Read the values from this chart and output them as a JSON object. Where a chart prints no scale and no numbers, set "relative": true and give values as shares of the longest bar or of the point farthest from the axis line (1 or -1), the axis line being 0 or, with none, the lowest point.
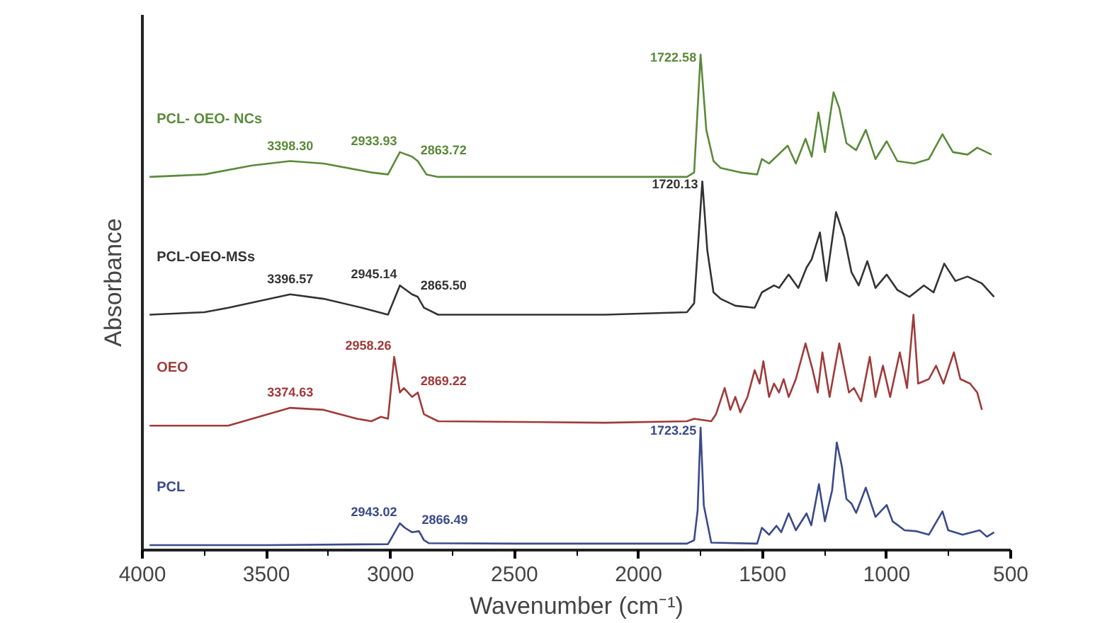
{
  "chart_data": {
    "type": "line",
    "relative": true,
    "xlabel": "Wavenumber (cm⁻¹)",
    "ylabel": "Absorbance",
    "xlim": [
      4000,
      500
    ],
    "xticks": [
      4000,
      3500,
      3000,
      2500,
      2000,
      1500,
      1000,
      500
    ],
    "tick_labels": "x",
    "grid": false,
    "marker": "none",
    "line_style": "solid",
    "series": [
      {
        "name": "PCL",
        "color": "#3a4a8a",
        "x": [
          3971,
          3500,
          3010,
          2962,
          2942,
          2913,
          2885,
          2865,
          2846,
          2500,
          2176,
          1805,
          1776,
          1762,
          1750,
          1737,
          1707,
          1522,
          1503,
          1474,
          1444,
          1425,
          1395,
          1366,
          1323,
          1304,
          1273,
          1249,
          1220,
          1201,
          1181,
          1162,
          1142,
          1123,
          1084,
          1045,
          1000,
          976,
          928,
          879,
          830,
          775,
          752,
          694,
          625,
          596,
          567
        ],
        "values": [
          0.01,
          0.01,
          0.012,
          0.054,
          0.045,
          0.036,
          0.038,
          0.02,
          0.014,
          0.013,
          0.013,
          0.013,
          0.02,
          0.08,
          0.247,
          0.09,
          0.015,
          0.013,
          0.045,
          0.031,
          0.049,
          0.036,
          0.074,
          0.04,
          0.074,
          0.05,
          0.133,
          0.058,
          0.12,
          0.217,
          0.17,
          0.103,
          0.094,
          0.075,
          0.126,
          0.067,
          0.091,
          0.058,
          0.04,
          0.038,
          0.031,
          0.078,
          0.04,
          0.031,
          0.04,
          0.027,
          0.036
        ]
      },
      {
        "name": "OEO",
        "color": "#a03a3a",
        "x": [
          3971,
          3654,
          3404,
          3269,
          3135,
          3077,
          3038,
          3010,
          2985,
          2962,
          2946,
          2913,
          2890,
          2865,
          2808,
          2135,
          1805,
          1776,
          1707,
          1688,
          1653,
          1630,
          1610,
          1590,
          1561,
          1532,
          1512,
          1497,
          1474,
          1454,
          1434,
          1415,
          1395,
          1366,
          1327,
          1298,
          1278,
          1259,
          1230,
          1191,
          1152,
          1132,
          1103,
          1068,
          1045,
          1015,
          986,
          947,
          918,
          892,
          873,
          830,
          801,
          771,
          729,
          703,
          664,
          635,
          616
        ],
        "values": [
          0.251,
          0.251,
          0.287,
          0.283,
          0.265,
          0.26,
          0.269,
          0.265,
          0.39,
          0.318,
          0.327,
          0.309,
          0.318,
          0.274,
          0.26,
          0.257,
          0.26,
          0.265,
          0.26,
          0.274,
          0.327,
          0.283,
          0.309,
          0.278,
          0.309,
          0.363,
          0.336,
          0.381,
          0.309,
          0.336,
          0.318,
          0.345,
          0.309,
          0.345,
          0.417,
          0.363,
          0.318,
          0.399,
          0.309,
          0.417,
          0.318,
          0.327,
          0.3,
          0.39,
          0.309,
          0.372,
          0.309,
          0.399,
          0.327,
          0.475,
          0.336,
          0.345,
          0.372,
          0.336,
          0.399,
          0.345,
          0.336,
          0.318,
          0.283
        ]
      },
      {
        "name": "PCL-OEO-MSs",
        "color": "#333333",
        "x": [
          3971,
          3750,
          3654,
          3404,
          3269,
          3115,
          3010,
          2962,
          2913,
          2890,
          2865,
          2808,
          2135,
          1805,
          1776,
          1743,
          1723,
          1698,
          1669,
          1610,
          1532,
          1503,
          1454,
          1434,
          1395,
          1356,
          1323,
          1302,
          1269,
          1243,
          1204,
          1171,
          1142,
          1113,
          1078,
          1045,
          1000,
          957,
          908,
          850,
          811,
          768,
          723,
          674,
          616,
          567
        ],
        "values": [
          0.475,
          0.48,
          0.489,
          0.516,
          0.507,
          0.489,
          0.475,
          0.534,
          0.516,
          0.511,
          0.489,
          0.475,
          0.475,
          0.48,
          0.498,
          0.744,
          0.605,
          0.52,
          0.507,
          0.493,
          0.489,
          0.52,
          0.534,
          0.529,
          0.556,
          0.529,
          0.57,
          0.587,
          0.641,
          0.543,
          0.682,
          0.632,
          0.561,
          0.534,
          0.583,
          0.529,
          0.556,
          0.525,
          0.511,
          0.534,
          0.52,
          0.578,
          0.543,
          0.552,
          0.538,
          0.511
        ]
      },
      {
        "name": "PCL- OEO- NCs",
        "color": "#5a8a3a",
        "x": [
          3971,
          3750,
          3558,
          3404,
          3269,
          3077,
          3010,
          2962,
          2913,
          2890,
          2855,
          2808,
          2135,
          1805,
          1776,
          1750,
          1727,
          1698,
          1669,
          1590,
          1522,
          1503,
          1474,
          1399,
          1366,
          1327,
          1302,
          1275,
          1249,
          1214,
          1191,
          1162,
          1123,
          1084,
          1045,
          1000,
          957,
          889,
          830,
          775,
          733,
          674,
          635,
          577
        ],
        "values": [
          0.753,
          0.758,
          0.776,
          0.785,
          0.78,
          0.762,
          0.758,
          0.803,
          0.794,
          0.785,
          0.758,
          0.753,
          0.753,
          0.753,
          0.762,
          1,
          0.848,
          0.785,
          0.771,
          0.762,
          0.758,
          0.789,
          0.78,
          0.816,
          0.78,
          0.83,
          0.794,
          0.883,
          0.803,
          0.924,
          0.892,
          0.821,
          0.807,
          0.848,
          0.789,
          0.825,
          0.785,
          0.78,
          0.789,
          0.839,
          0.803,
          0.798,
          0.812,
          0.798
        ]
      }
    ],
    "annotations": [
      {
        "text": "2943.02",
        "x": 2962,
        "y": 0.054
      },
      {
        "text": "2866.49",
        "x": 2885,
        "y": 0.038
      },
      {
        "text": "1723.25",
        "x": 1750,
        "y": 0.247
      },
      {
        "text": "3374.63",
        "x": 3404,
        "y": 0.287
      },
      {
        "text": "2958.26",
        "x": 2985,
        "y": 0.39
      },
      {
        "text": "2869.22",
        "x": 2890,
        "y": 0.318
      },
      {
        "text": "3396.57",
        "x": 3404,
        "y": 0.516
      },
      {
        "text": "2945.14",
        "x": 2962,
        "y": 0.534
      },
      {
        "text": "2865.50",
        "x": 2890,
        "y": 0.511
      },
      {
        "text": "1720.13",
        "x": 1743,
        "y": 0.744
      },
      {
        "text": "3398.30",
        "x": 3404,
        "y": 0.785
      },
      {
        "text": "2933.93",
        "x": 2962,
        "y": 0.803
      },
      {
        "text": "2863.72",
        "x": 2890,
        "y": 0.785
      },
      {
        "text": "1722.58",
        "x": 1750,
        "y": 1
      }
    ]
  }
}
